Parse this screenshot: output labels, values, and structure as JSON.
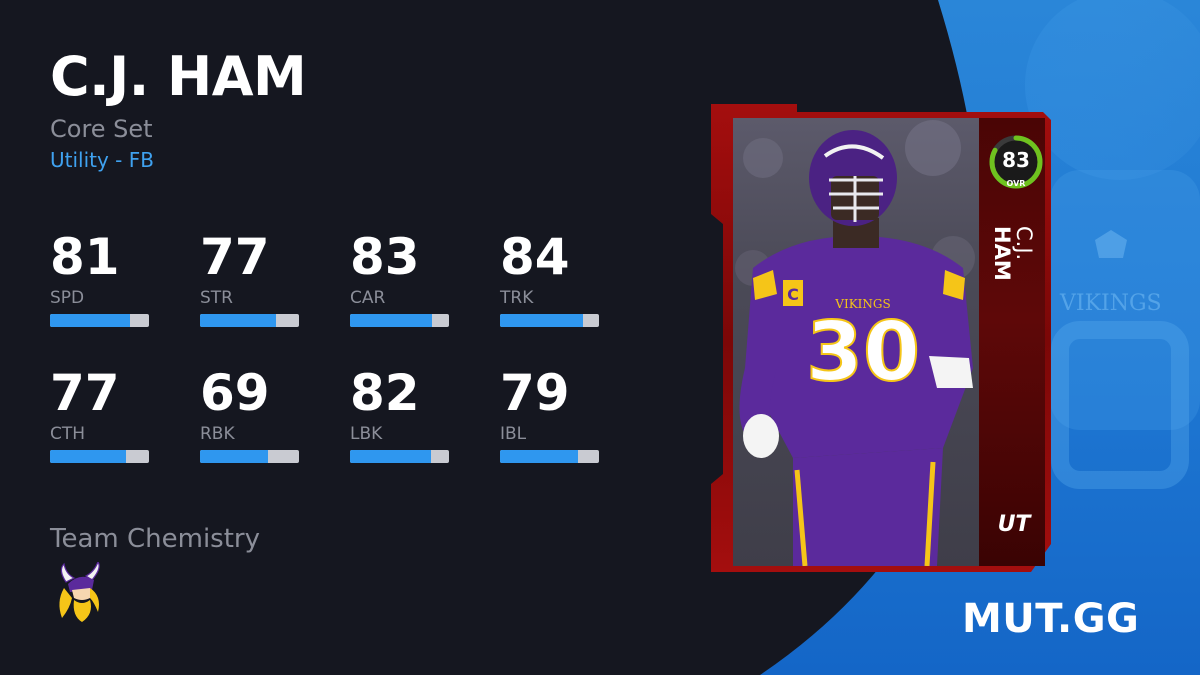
{
  "player": {
    "name": "C.J. HAM",
    "set": "Core Set",
    "position": "Utility - FB"
  },
  "stats": [
    {
      "value": "81",
      "label": "SPD",
      "level": 0.81
    },
    {
      "value": "77",
      "label": "STR",
      "level": 0.77
    },
    {
      "value": "83",
      "label": "CAR",
      "level": 0.83
    },
    {
      "value": "84",
      "label": "TRK",
      "level": 0.84
    },
    {
      "value": "77",
      "label": "CTH",
      "level": 0.77
    },
    {
      "value": "69",
      "label": "RBK",
      "level": 0.69
    },
    {
      "value": "82",
      "label": "LBK",
      "level": 0.82
    },
    {
      "value": "79",
      "label": "IBL",
      "level": 0.79
    }
  ],
  "chemistry": {
    "title": "Team Chemistry",
    "team_logo_icon": "vikings-logo-icon"
  },
  "card": {
    "ovr": "83",
    "ovr_label": "OVR",
    "ovr_level": 0.83,
    "name_first": "C.J.",
    "name_last": "HAM",
    "program": "UT",
    "jersey_number": "30",
    "jersey_wordmark": "VIKINGS",
    "captain_patch": "C"
  },
  "brand": {
    "name": "MUT.GG"
  },
  "colors": {
    "background": "#151720",
    "accent_blue": "#2f97ef",
    "link_blue": "#3fa2f0",
    "muted_text": "#8b8e99",
    "card_red": "#8a0a0a",
    "ovr_green": "#6fc21f",
    "vikings_purple": "#5b2a9c",
    "vikings_gold": "#f5c518"
  }
}
